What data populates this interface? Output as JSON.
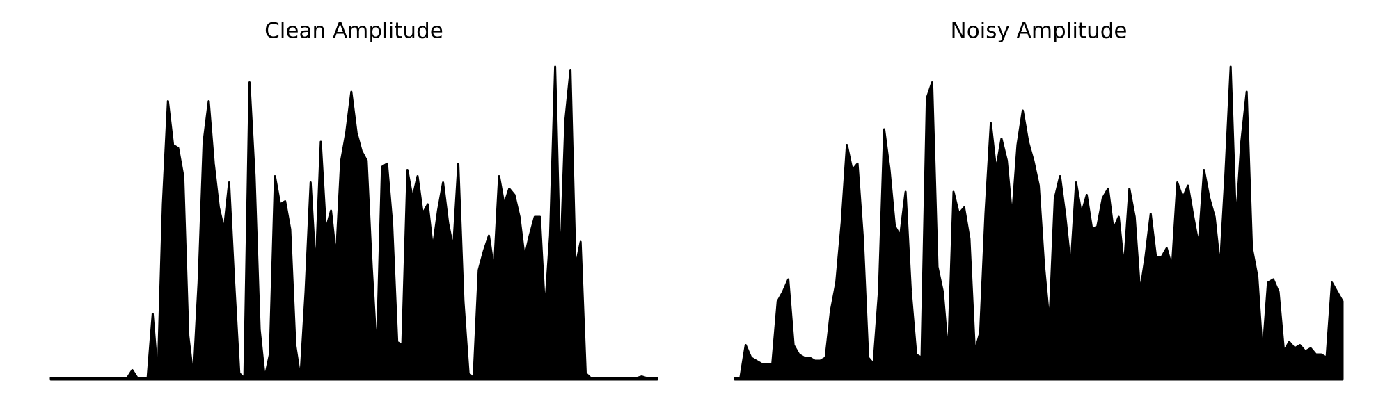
{
  "chart_data": [
    {
      "type": "area",
      "title": "Clean Amplitude",
      "color": "#000000",
      "ylim": [
        0,
        1
      ],
      "values": [
        0.005,
        0.005,
        0.005,
        0.005,
        0.005,
        0.005,
        0.005,
        0.005,
        0.005,
        0.005,
        0.005,
        0.005,
        0.005,
        0.005,
        0.005,
        0.005,
        0.03,
        0.005,
        0.005,
        0.005,
        0.21,
        0.01,
        0.56,
        0.89,
        0.75,
        0.74,
        0.65,
        0.14,
        0.005,
        0.31,
        0.76,
        0.89,
        0.69,
        0.55,
        0.48,
        0.63,
        0.31,
        0.02,
        0.005,
        0.95,
        0.65,
        0.16,
        0.005,
        0.08,
        0.65,
        0.56,
        0.57,
        0.48,
        0.11,
        0.005,
        0.28,
        0.63,
        0.35,
        0.76,
        0.48,
        0.54,
        0.39,
        0.7,
        0.79,
        0.92,
        0.79,
        0.73,
        0.7,
        0.36,
        0.08,
        0.68,
        0.69,
        0.5,
        0.12,
        0.11,
        0.67,
        0.58,
        0.65,
        0.53,
        0.56,
        0.42,
        0.54,
        0.63,
        0.5,
        0.42,
        0.69,
        0.25,
        0.02,
        0.005,
        0.35,
        0.41,
        0.46,
        0.35,
        0.65,
        0.56,
        0.61,
        0.59,
        0.52,
        0.39,
        0.46,
        0.52,
        0.52,
        0.22,
        0.46,
        1.0,
        0.36,
        0.83,
        0.99,
        0.36,
        0.44,
        0.02,
        0.005,
        0.005,
        0.005,
        0.005,
        0.005,
        0.005,
        0.005,
        0.005,
        0.005,
        0.005,
        0.01,
        0.005,
        0.005,
        0.005
      ]
    },
    {
      "type": "area",
      "title": "Noisy Amplitude",
      "color": "#000000",
      "ylim": [
        0,
        1
      ],
      "values": [
        0.005,
        0.005,
        0.11,
        0.07,
        0.06,
        0.05,
        0.05,
        0.05,
        0.25,
        0.28,
        0.32,
        0.11,
        0.08,
        0.07,
        0.07,
        0.06,
        0.06,
        0.07,
        0.22,
        0.31,
        0.5,
        0.75,
        0.67,
        0.69,
        0.45,
        0.07,
        0.05,
        0.28,
        0.8,
        0.67,
        0.49,
        0.46,
        0.6,
        0.28,
        0.08,
        0.07,
        0.9,
        0.95,
        0.36,
        0.28,
        0.08,
        0.6,
        0.53,
        0.55,
        0.45,
        0.09,
        0.15,
        0.53,
        0.82,
        0.67,
        0.77,
        0.7,
        0.52,
        0.75,
        0.86,
        0.76,
        0.7,
        0.62,
        0.36,
        0.18,
        0.58,
        0.65,
        0.52,
        0.36,
        0.63,
        0.53,
        0.59,
        0.48,
        0.49,
        0.58,
        0.61,
        0.48,
        0.52,
        0.36,
        0.61,
        0.52,
        0.28,
        0.39,
        0.53,
        0.39,
        0.39,
        0.42,
        0.36,
        0.63,
        0.58,
        0.62,
        0.52,
        0.43,
        0.67,
        0.58,
        0.52,
        0.36,
        0.65,
        1.0,
        0.5,
        0.76,
        0.92,
        0.42,
        0.33,
        0.08,
        0.31,
        0.32,
        0.28,
        0.09,
        0.12,
        0.1,
        0.11,
        0.09,
        0.1,
        0.08,
        0.08,
        0.07,
        0.31,
        0.28,
        0.25
      ]
    }
  ]
}
